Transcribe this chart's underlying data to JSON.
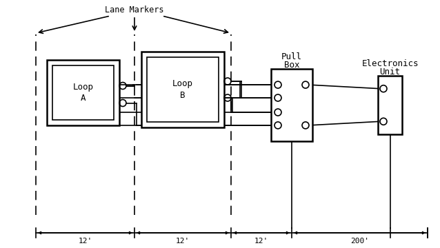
{
  "bg_color": "#ffffff",
  "line_color": "#000000",
  "lane_markers_label": "Lane Markers",
  "loop_a_label_1": "Loop",
  "loop_a_label_2": "A",
  "loop_b_label_1": "Loop",
  "loop_b_label_2": "B",
  "pull_box_label_1": "Pull",
  "pull_box_label_2": "Box",
  "electronics_label_1": "Electronics",
  "electronics_label_2": "Unit",
  "dim_12a": "12'",
  "dim_12b": "12'",
  "dim_12c": "12'",
  "dim_200": "200'",
  "fig_width": 6.38,
  "fig_height": 3.6
}
